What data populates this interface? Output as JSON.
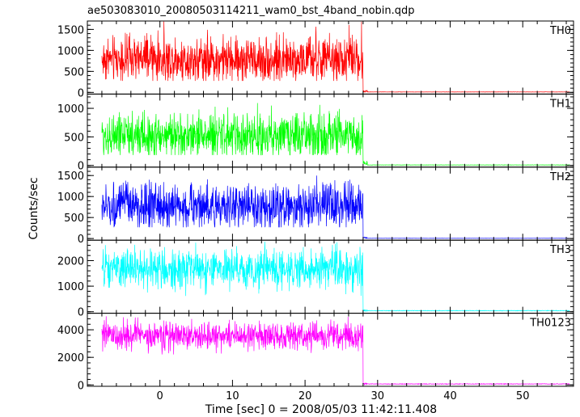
{
  "chart_data": {
    "type": "line",
    "title": "ae503083010_20080503114211_wam0_bst_4band_nobin.qdp",
    "xlabel": "Time [sec] 0 = 2008/05/03 11:42:11.408",
    "ylabel": "Counts/sec",
    "xlim": [
      -10,
      57
    ],
    "x_ticks": [
      0,
      10,
      20,
      30,
      40,
      50
    ],
    "data_x_range": [
      -8,
      56.5
    ],
    "burst_end": 28,
    "grid": false,
    "legend": "none",
    "series": [
      {
        "name": "TH0",
        "color": "#ff0000",
        "ylim": [
          -40,
          1700
        ],
        "y_ticks": [
          0,
          500,
          1000,
          1500
        ],
        "mean": 780,
        "spread": 260,
        "spike_max": 1700,
        "post_level": 10,
        "post_spike": 50
      },
      {
        "name": "TH1",
        "color": "#00ff00",
        "ylim": [
          -30,
          1250
        ],
        "y_ticks": [
          0,
          500,
          1000
        ],
        "mean": 520,
        "spread": 190,
        "spike_max": 1250,
        "post_level": 8,
        "post_spike": 90
      },
      {
        "name": "TH2",
        "color": "#0000ff",
        "ylim": [
          -40,
          1700
        ],
        "y_ticks": [
          0,
          500,
          1000,
          1500
        ],
        "mean": 760,
        "spread": 260,
        "spike_max": 1700,
        "post_level": 5,
        "post_spike": 30
      },
      {
        "name": "TH3",
        "color": "#00ffff",
        "ylim": [
          -60,
          2800
        ],
        "y_ticks": [
          0,
          1000,
          2000
        ],
        "mean": 1650,
        "spread": 380,
        "spike_max": 2800,
        "post_level": 40,
        "post_spike": 80
      },
      {
        "name": "TH0123",
        "color": "#ff00ff",
        "ylim": [
          -100,
          5200
        ],
        "y_ticks": [
          0,
          2000,
          4000
        ],
        "mean": 3550,
        "spread": 500,
        "spike_max": 5000,
        "post_level": 70,
        "post_spike": 150
      }
    ]
  }
}
